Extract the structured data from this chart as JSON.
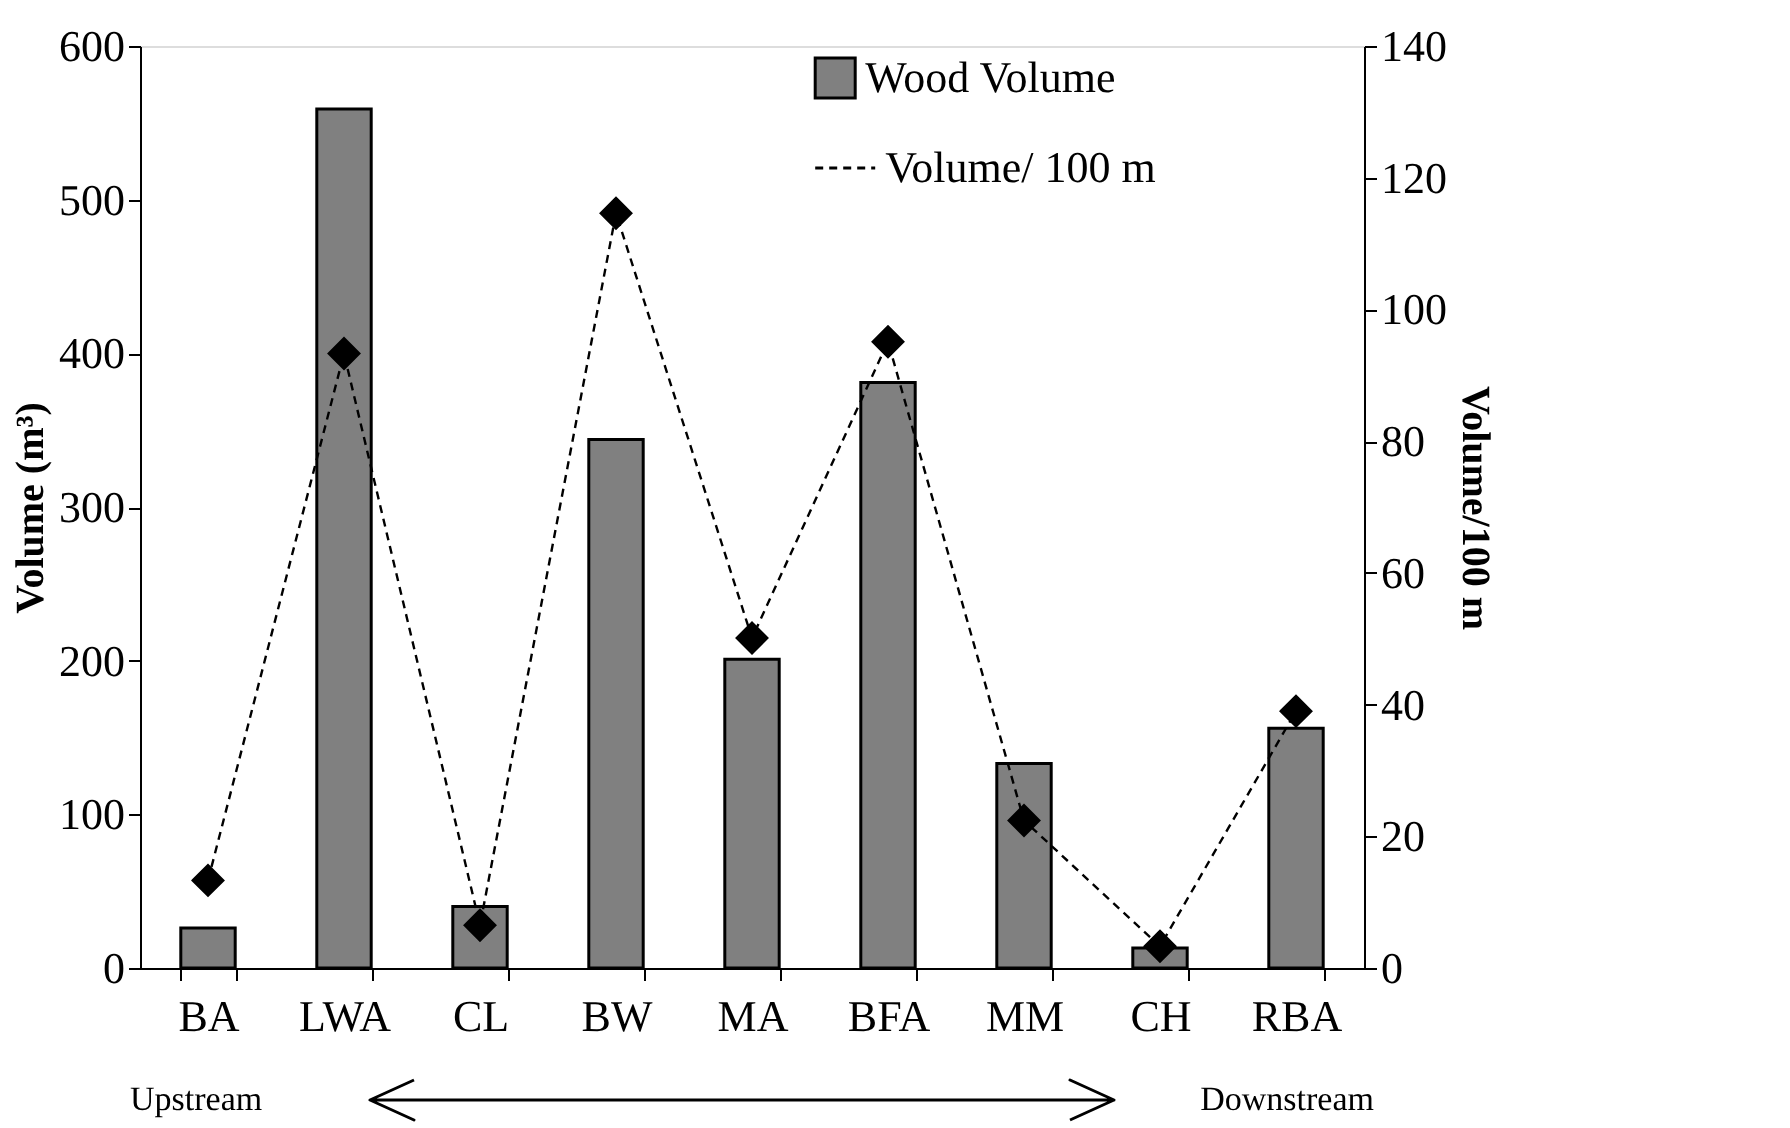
{
  "chart_data": {
    "type": "bar",
    "categories": [
      "BA",
      "LWA",
      "CL",
      "BW",
      "MA",
      "BFA",
      "MM",
      "CH",
      "RBA"
    ],
    "series": [
      {
        "name": "Wood Volume",
        "color": "#808080",
        "values": [
          26,
          559,
          40,
          344,
          201,
          381,
          133,
          13,
          156
        ]
      },
      {
        "name": "Volume/ 100 m",
        "type": "line",
        "axis": "y2",
        "color": "#000000",
        "marker": "diamond",
        "line_style": "dashed",
        "values": [
          13.3,
          93.3,
          6.5,
          114.6,
          50.1,
          95.1,
          22.4,
          3.3,
          39.0
        ]
      }
    ],
    "ylabel": "Volume (m³)",
    "y2label": "Volume/100 m",
    "ylim": [
      0,
      600
    ],
    "yticks": [
      0,
      100,
      200,
      300,
      400,
      500,
      600
    ],
    "y2lim": [
      0,
      140
    ],
    "y2ticks": [
      0,
      20,
      40,
      60,
      80,
      100,
      120,
      140
    ],
    "annotations": [
      "Upstream",
      "Downstream"
    ],
    "grid": false,
    "legend": "top right"
  }
}
